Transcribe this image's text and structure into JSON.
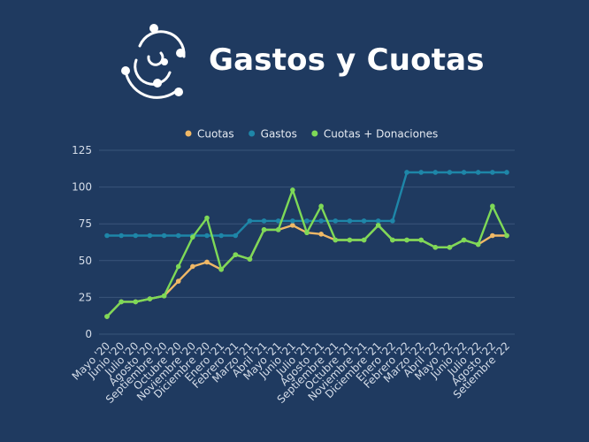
{
  "title": "Gastos y Cuotas",
  "icons": {
    "logo": "orbit-logo-icon"
  },
  "colors": {
    "background": "#1f3a60",
    "cuotas": "#f0b866",
    "gastos": "#1e86a8",
    "cuotas_donaciones": "#7ed957"
  },
  "chart_data": {
    "type": "line",
    "title": "",
    "xlabel": "",
    "ylabel": "",
    "ylim": [
      0,
      125
    ],
    "yticks": [
      0,
      25,
      50,
      75,
      100,
      125
    ],
    "grid": true,
    "legend_position": "top-center",
    "categories": [
      "Mayo '20",
      "Junio '20",
      "Julio '20",
      "Agosto '20",
      "Septiembre '20",
      "Octubre '20",
      "Noviembre '20",
      "Diciembre '20",
      "Enero '21",
      "Febrero '21",
      "Marzo '21",
      "Abril '21",
      "Mayo '21",
      "Junio '21",
      "Julio '21",
      "Agosto '21",
      "Septiembre '21",
      "Octubre '21",
      "Noviembre '21",
      "Diciembre '21",
      "Enero '22",
      "Febrero '22",
      "Marzo '22",
      "Abril '22",
      "Mayo '22",
      "Junio '22",
      "Julio '22",
      "Agosto '22",
      "Setiembre '22"
    ],
    "series": [
      {
        "name": "Cuotas",
        "color": "#f0b866",
        "values": [
          12,
          22,
          22,
          24,
          26,
          36,
          46,
          49,
          44,
          54,
          51,
          71,
          71,
          74,
          69,
          68,
          64,
          64,
          64,
          74,
          64,
          64,
          64,
          59,
          59,
          64,
          61,
          67,
          67
        ]
      },
      {
        "name": "Gastos",
        "color": "#1e86a8",
        "values": [
          67,
          67,
          67,
          67,
          67,
          67,
          67,
          67,
          67,
          67,
          77,
          77,
          77,
          77,
          77,
          77,
          77,
          77,
          77,
          77,
          77,
          110,
          110,
          110,
          110,
          110,
          110,
          110,
          110
        ]
      },
      {
        "name": "Cuotas + Donaciones",
        "color": "#7ed957",
        "values": [
          12,
          22,
          22,
          24,
          26,
          46,
          66,
          79,
          44,
          54,
          51,
          71,
          71,
          98,
          69,
          87,
          64,
          64,
          64,
          74,
          64,
          64,
          64,
          59,
          59,
          64,
          61,
          87,
          67
        ]
      }
    ]
  }
}
